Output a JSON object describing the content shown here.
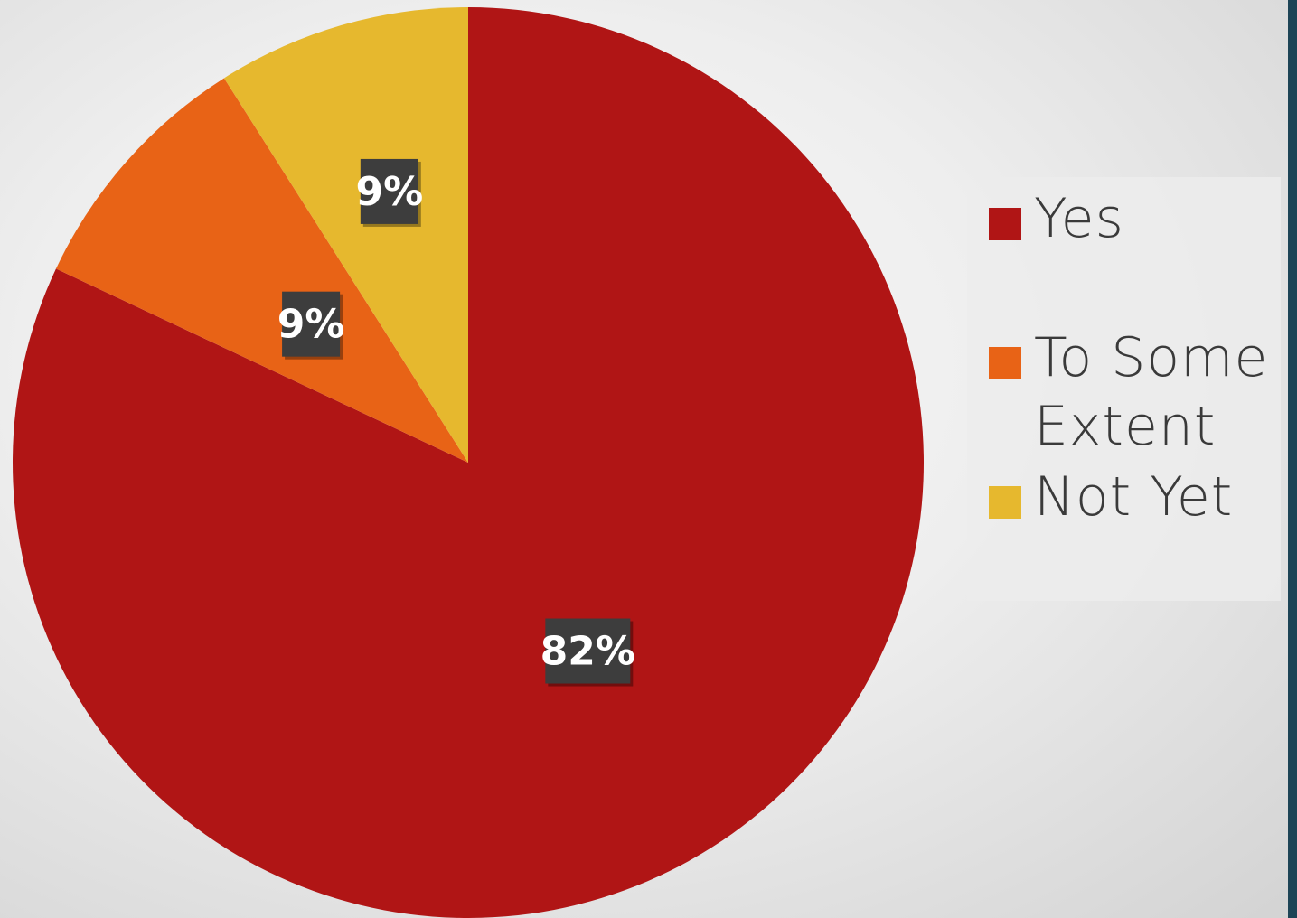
{
  "chart_data": {
    "type": "pie",
    "title": "",
    "categories": [
      "Yes",
      "To Some Extent",
      "Not Yet"
    ],
    "values": [
      82,
      9,
      9
    ],
    "labels": [
      "82%",
      "9%",
      "9%"
    ],
    "colors": [
      "#b01515",
      "#e86316",
      "#e6b82e"
    ],
    "legend_position": "right",
    "start_angle": "12 o'clock",
    "direction": "clockwise"
  }
}
